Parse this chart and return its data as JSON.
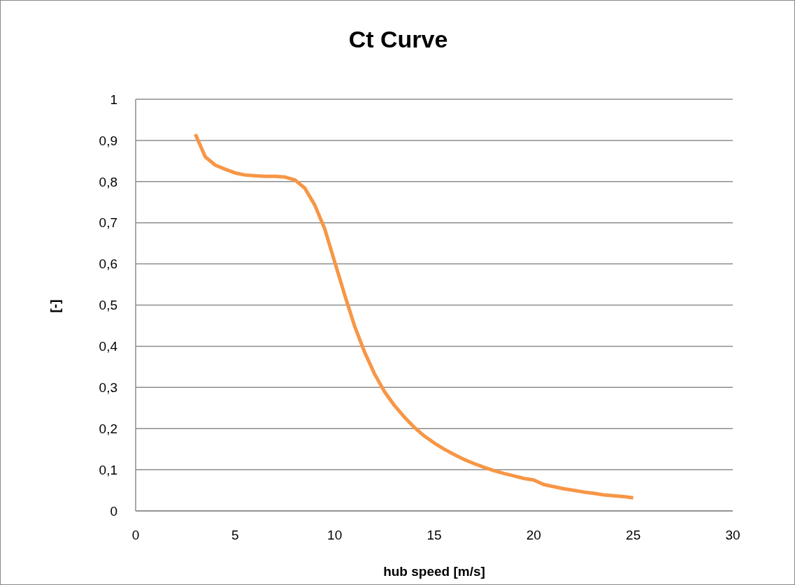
{
  "chart_data": {
    "type": "line",
    "title": "Ct Curve",
    "xlabel": "hub speed [m/s]",
    "ylabel": "[-]",
    "x": [
      3,
      3.5,
      4,
      4.5,
      5,
      5.5,
      6,
      6.5,
      7,
      7.5,
      8,
      8.5,
      9,
      9.5,
      10,
      10.5,
      11,
      11.5,
      12,
      12.5,
      13,
      13.5,
      14,
      14.5,
      15,
      15.5,
      16,
      16.5,
      17,
      17.5,
      18,
      18.5,
      19,
      19.5,
      20,
      20.5,
      21,
      21.5,
      22,
      22.5,
      23,
      23.5,
      24,
      24.5,
      25
    ],
    "series": [
      {
        "color": "#f79646",
        "values": [
          0.915,
          0.86,
          0.84,
          0.83,
          0.821,
          0.816,
          0.814,
          0.813,
          0.813,
          0.811,
          0.804,
          0.784,
          0.743,
          0.685,
          0.605,
          0.525,
          0.449,
          0.386,
          0.333,
          0.29,
          0.256,
          0.228,
          0.203,
          0.182,
          0.165,
          0.15,
          0.137,
          0.125,
          0.115,
          0.106,
          0.098,
          0.091,
          0.085,
          0.079,
          0.075,
          0.064,
          0.059,
          0.054,
          0.05,
          0.046,
          0.043,
          0.039,
          0.037,
          0.035,
          0.032
        ]
      }
    ],
    "xlim": [
      0,
      30
    ],
    "xticks": [
      0,
      5,
      10,
      15,
      20,
      25,
      30
    ],
    "ylim": [
      0,
      1
    ],
    "yticks": [
      0,
      {
        "value": 0.1,
        "label": "0,1"
      },
      {
        "value": 0.2,
        "label": "0,2"
      },
      {
        "value": 0.3,
        "label": "0,3"
      },
      {
        "value": 0.4,
        "label": "0,4"
      },
      {
        "value": 0.5,
        "label": "0,5"
      },
      {
        "value": 0.6,
        "label": "0,6"
      },
      {
        "value": 0.7,
        "label": "0,7"
      },
      {
        "value": 0.8,
        "label": "0,8"
      },
      {
        "value": 0.9,
        "label": "0,9"
      },
      1
    ],
    "grid": "y",
    "legend": false,
    "marker": "none",
    "line_style": "solid"
  }
}
